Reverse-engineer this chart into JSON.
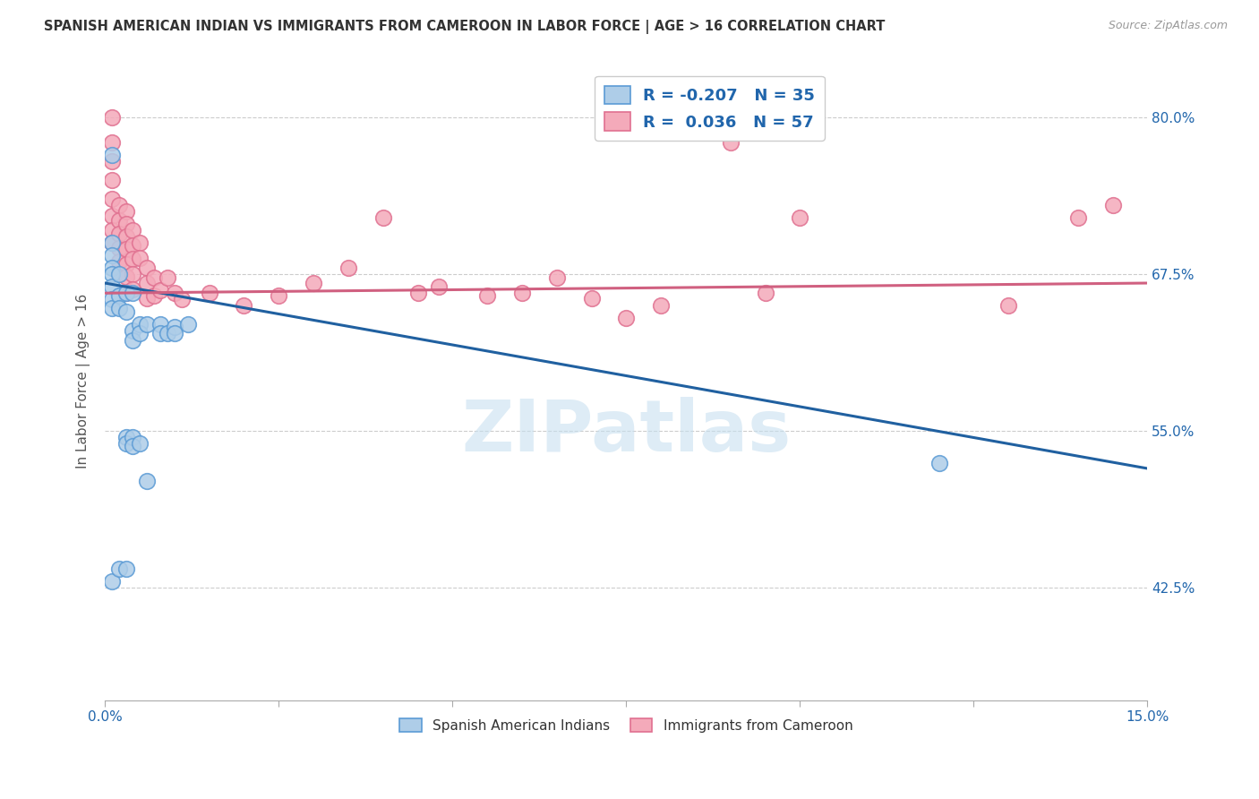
{
  "title": "SPANISH AMERICAN INDIAN VS IMMIGRANTS FROM CAMEROON IN LABOR FORCE | AGE > 16 CORRELATION CHART",
  "source": "Source: ZipAtlas.com",
  "ylabel": "In Labor Force | Age > 16",
  "ytick_vals": [
    0.425,
    0.55,
    0.675,
    0.8
  ],
  "ytick_labels": [
    "42.5%",
    "55.0%",
    "67.5%",
    "80.0%"
  ],
  "xmin": 0.0,
  "xmax": 0.15,
  "ymin": 0.335,
  "ymax": 0.845,
  "legend_r_blue": "-0.207",
  "legend_n_blue": "35",
  "legend_r_pink": "0.036",
  "legend_n_pink": "57",
  "blue_fill": "#AECDE8",
  "pink_fill": "#F4AABA",
  "blue_edge": "#5B9BD5",
  "pink_edge": "#E07090",
  "blue_line_color": "#2060A0",
  "pink_line_color": "#D06080",
  "watermark": "ZIPatlas",
  "blue_dots": [
    [
      0.001,
      0.77
    ],
    [
      0.001,
      0.7
    ],
    [
      0.001,
      0.69
    ],
    [
      0.001,
      0.68
    ],
    [
      0.001,
      0.675
    ],
    [
      0.001,
      0.665
    ],
    [
      0.001,
      0.655
    ],
    [
      0.001,
      0.648
    ],
    [
      0.002,
      0.675
    ],
    [
      0.002,
      0.658
    ],
    [
      0.002,
      0.648
    ],
    [
      0.003,
      0.66
    ],
    [
      0.003,
      0.645
    ],
    [
      0.004,
      0.66
    ],
    [
      0.004,
      0.63
    ],
    [
      0.004,
      0.622
    ],
    [
      0.005,
      0.635
    ],
    [
      0.005,
      0.628
    ],
    [
      0.006,
      0.635
    ],
    [
      0.008,
      0.635
    ],
    [
      0.008,
      0.628
    ],
    [
      0.009,
      0.628
    ],
    [
      0.01,
      0.633
    ],
    [
      0.01,
      0.628
    ],
    [
      0.003,
      0.545
    ],
    [
      0.003,
      0.54
    ],
    [
      0.004,
      0.545
    ],
    [
      0.004,
      0.538
    ],
    [
      0.005,
      0.54
    ],
    [
      0.006,
      0.51
    ],
    [
      0.012,
      0.635
    ],
    [
      0.001,
      0.43
    ],
    [
      0.002,
      0.44
    ],
    [
      0.12,
      0.524
    ],
    [
      0.003,
      0.44
    ]
  ],
  "pink_dots": [
    [
      0.001,
      0.8
    ],
    [
      0.001,
      0.78
    ],
    [
      0.001,
      0.765
    ],
    [
      0.001,
      0.75
    ],
    [
      0.001,
      0.735
    ],
    [
      0.001,
      0.722
    ],
    [
      0.001,
      0.71
    ],
    [
      0.001,
      0.7
    ],
    [
      0.002,
      0.73
    ],
    [
      0.002,
      0.718
    ],
    [
      0.002,
      0.707
    ],
    [
      0.002,
      0.696
    ],
    [
      0.002,
      0.685
    ],
    [
      0.002,
      0.675
    ],
    [
      0.003,
      0.725
    ],
    [
      0.003,
      0.715
    ],
    [
      0.003,
      0.705
    ],
    [
      0.003,
      0.695
    ],
    [
      0.003,
      0.683
    ],
    [
      0.003,
      0.673
    ],
    [
      0.003,
      0.66
    ],
    [
      0.004,
      0.71
    ],
    [
      0.004,
      0.698
    ],
    [
      0.004,
      0.687
    ],
    [
      0.004,
      0.675
    ],
    [
      0.004,
      0.663
    ],
    [
      0.005,
      0.7
    ],
    [
      0.005,
      0.688
    ],
    [
      0.006,
      0.68
    ],
    [
      0.006,
      0.668
    ],
    [
      0.006,
      0.656
    ],
    [
      0.007,
      0.672
    ],
    [
      0.007,
      0.658
    ],
    [
      0.008,
      0.662
    ],
    [
      0.009,
      0.672
    ],
    [
      0.01,
      0.66
    ],
    [
      0.011,
      0.655
    ],
    [
      0.015,
      0.66
    ],
    [
      0.02,
      0.65
    ],
    [
      0.025,
      0.658
    ],
    [
      0.03,
      0.668
    ],
    [
      0.035,
      0.68
    ],
    [
      0.04,
      0.72
    ],
    [
      0.045,
      0.66
    ],
    [
      0.048,
      0.665
    ],
    [
      0.055,
      0.658
    ],
    [
      0.06,
      0.66
    ],
    [
      0.065,
      0.672
    ],
    [
      0.07,
      0.656
    ],
    [
      0.075,
      0.64
    ],
    [
      0.08,
      0.65
    ],
    [
      0.09,
      0.78
    ],
    [
      0.095,
      0.66
    ],
    [
      0.1,
      0.72
    ],
    [
      0.13,
      0.65
    ],
    [
      0.14,
      0.72
    ],
    [
      0.145,
      0.73
    ]
  ],
  "blue_line_x": [
    0.0,
    0.15
  ],
  "blue_line_y": [
    0.668,
    0.52
  ],
  "pink_line_x": [
    0.0,
    0.15
  ],
  "pink_line_y": [
    0.66,
    0.668
  ],
  "xtick_positions": [
    0.0,
    0.025,
    0.05,
    0.075,
    0.1,
    0.125,
    0.15
  ],
  "xtick_labels": [
    "0.0%",
    "",
    "",
    "",
    "",
    "",
    "15.0%"
  ]
}
